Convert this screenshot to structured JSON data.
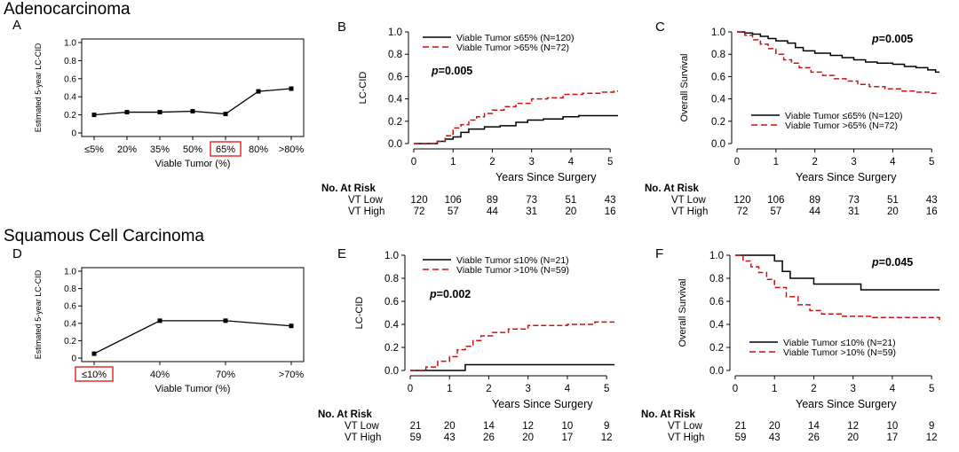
{
  "sections": [
    {
      "title": "Adenocarcinoma"
    },
    {
      "title": "Squamous Cell Carcinoma"
    }
  ],
  "colors": {
    "low": "#000000",
    "high": "#cc1111",
    "highlight": "#e02020"
  },
  "panels": {
    "A": {
      "label": "A"
    },
    "B": {
      "label": "B"
    },
    "C": {
      "label": "C"
    },
    "D": {
      "label": "D"
    },
    "E": {
      "label": "E"
    },
    "F": {
      "label": "F"
    }
  },
  "chart_data": [
    {
      "id": "A",
      "type": "line",
      "ylabel": "Estimated 5-year LC-CID",
      "xlabel": "Viable Tumor (%)",
      "categories": [
        "≤5%",
        "20%",
        "35%",
        "50%",
        "65%",
        "80%",
        ">80%"
      ],
      "values": [
        0.2,
        0.23,
        0.23,
        0.24,
        0.21,
        0.46,
        0.49
      ],
      "highlight_category": "65%",
      "ylim": [
        0,
        1
      ],
      "yticks": [
        "0",
        "0.2",
        "0.4",
        "0.6",
        "0.8",
        "1.0"
      ]
    },
    {
      "id": "B",
      "type": "line",
      "step": true,
      "ylabel": "LC-CID",
      "xlabel": "Years Since Surgery",
      "xlim": [
        0,
        5.2
      ],
      "ylim": [
        0,
        1
      ],
      "xticks": [
        "0",
        "1",
        "2",
        "3",
        "4",
        "5"
      ],
      "yticks": [
        "0.0",
        "0.2",
        "0.4",
        "0.6",
        "0.8",
        "1.0"
      ],
      "pvalue_label": "p",
      "pvalue": "=0.005",
      "legend": [
        "Viable Tumor ≤65% (N=120)",
        "Viable Tumor >65% (N=72)"
      ],
      "series": [
        {
          "name": "Viable Tumor ≤65% (N=120)",
          "style": "solid",
          "x": [
            0,
            0.5,
            0.6,
            0.8,
            1.0,
            1.2,
            1.4,
            1.8,
            2.2,
            2.6,
            2.9,
            3.3,
            3.8,
            4.2,
            5.2
          ],
          "y": [
            0,
            0,
            0.02,
            0.04,
            0.06,
            0.1,
            0.13,
            0.15,
            0.16,
            0.19,
            0.21,
            0.22,
            0.24,
            0.25,
            0.25
          ]
        },
        {
          "name": "Viable Tumor >65% (N=72)",
          "style": "dashed",
          "x": [
            0,
            0.6,
            0.8,
            1.0,
            1.2,
            1.4,
            1.6,
            1.8,
            2.0,
            2.3,
            2.6,
            3.0,
            3.4,
            3.8,
            4.3,
            4.8,
            5.1,
            5.2
          ],
          "y": [
            0,
            0.02,
            0.07,
            0.14,
            0.17,
            0.21,
            0.24,
            0.27,
            0.3,
            0.33,
            0.36,
            0.4,
            0.41,
            0.44,
            0.45,
            0.46,
            0.47,
            0.47
          ]
        }
      ],
      "risk": {
        "title": "No. At Risk",
        "rows": [
          {
            "label": "VT Low",
            "values": [
              "120",
              "106",
              "89",
              "73",
              "51",
              "43"
            ]
          },
          {
            "label": "VT High",
            "values": [
              "72",
              "57",
              "44",
              "31",
              "20",
              "16"
            ]
          }
        ]
      }
    },
    {
      "id": "C",
      "type": "line",
      "step": true,
      "ylabel": "Overall Survival",
      "xlabel": "Years Since Surgery",
      "xlim": [
        0,
        5.2
      ],
      "ylim": [
        0,
        1
      ],
      "xticks": [
        "0",
        "1",
        "2",
        "3",
        "4",
        "5"
      ],
      "yticks": [
        "0.0",
        "0.2",
        "0.4",
        "0.6",
        "0.8",
        "1.0"
      ],
      "pvalue_label": "p",
      "pvalue": "=0.005",
      "legend": [
        "Viable Tumor ≤65% (N=120)",
        "Viable Tumor >65% (N=72)"
      ],
      "series": [
        {
          "name": "Viable Tumor ≤65% (N=120)",
          "style": "solid",
          "x": [
            0,
            0.2,
            0.4,
            0.6,
            0.8,
            1.0,
            1.3,
            1.5,
            1.7,
            2.0,
            2.4,
            2.7,
            3.0,
            3.3,
            3.6,
            4.0,
            4.3,
            4.6,
            4.9,
            5.1,
            5.2
          ],
          "y": [
            1.0,
            0.99,
            0.98,
            0.96,
            0.94,
            0.92,
            0.9,
            0.86,
            0.83,
            0.81,
            0.79,
            0.77,
            0.75,
            0.73,
            0.72,
            0.71,
            0.69,
            0.68,
            0.66,
            0.64,
            0.64
          ]
        },
        {
          "name": "Viable Tumor >65% (N=72)",
          "style": "dashed",
          "x": [
            0,
            0.2,
            0.4,
            0.6,
            0.8,
            1.0,
            1.2,
            1.4,
            1.6,
            1.9,
            2.2,
            2.5,
            2.8,
            3.1,
            3.4,
            3.8,
            4.2,
            4.6,
            5.0,
            5.2
          ],
          "y": [
            1.0,
            0.97,
            0.93,
            0.89,
            0.85,
            0.8,
            0.75,
            0.72,
            0.68,
            0.64,
            0.61,
            0.58,
            0.56,
            0.53,
            0.51,
            0.49,
            0.47,
            0.46,
            0.45,
            0.45
          ]
        }
      ],
      "risk": {
        "title": "No. At Risk",
        "rows": [
          {
            "label": "VT Low",
            "values": [
              "120",
              "106",
              "89",
              "73",
              "51",
              "43"
            ]
          },
          {
            "label": "VT High",
            "values": [
              "72",
              "57",
              "44",
              "31",
              "20",
              "16"
            ]
          }
        ]
      }
    },
    {
      "id": "D",
      "type": "line",
      "ylabel": "Estimated 5-year LC-CID",
      "xlabel": "Viable Tumor (%)",
      "categories": [
        "≤10%",
        "40%",
        "70%",
        ">70%"
      ],
      "values": [
        0.05,
        0.43,
        0.43,
        0.37
      ],
      "highlight_category": "≤10%",
      "ylim": [
        0,
        1
      ],
      "yticks": [
        "0",
        "0.2",
        "0.4",
        "0.6",
        "0.8",
        "1.0"
      ]
    },
    {
      "id": "E",
      "type": "line",
      "step": true,
      "ylabel": "LC-CID",
      "xlabel": "Years Since Surgery",
      "xlim": [
        0,
        5.2
      ],
      "ylim": [
        0,
        1
      ],
      "xticks": [
        "0",
        "1",
        "2",
        "3",
        "4",
        "5"
      ],
      "yticks": [
        "0.0",
        "0.2",
        "0.4",
        "0.6",
        "0.8",
        "1.0"
      ],
      "pvalue_label": "p",
      "pvalue": "=0.002",
      "legend": [
        "Viable Tumor ≤10% (N=21)",
        "Viable Tumor >10% (N=59)"
      ],
      "series": [
        {
          "name": "Viable Tumor ≤10% (N=21)",
          "style": "solid",
          "x": [
            0,
            1.4,
            5.2
          ],
          "y": [
            0,
            0.05,
            0.05
          ]
        },
        {
          "name": "Viable Tumor >10% (N=59)",
          "style": "dashed",
          "x": [
            0,
            0.4,
            0.7,
            1.0,
            1.2,
            1.4,
            1.6,
            1.8,
            2.1,
            2.5,
            3.0,
            4.0,
            4.7,
            5.2
          ],
          "y": [
            0,
            0.03,
            0.08,
            0.12,
            0.18,
            0.21,
            0.26,
            0.3,
            0.33,
            0.36,
            0.39,
            0.4,
            0.42,
            0.42
          ]
        }
      ],
      "risk": {
        "title": "No. At Risk",
        "rows": [
          {
            "label": "VT Low",
            "values": [
              "21",
              "20",
              "14",
              "12",
              "10",
              "9"
            ]
          },
          {
            "label": "VT High",
            "values": [
              "59",
              "43",
              "26",
              "20",
              "17",
              "12"
            ]
          }
        ]
      }
    },
    {
      "id": "F",
      "type": "line",
      "step": true,
      "ylabel": "Overall Survival",
      "xlabel": "Years Since Surgery",
      "xlim": [
        0,
        5.2
      ],
      "ylim": [
        0,
        1
      ],
      "xticks": [
        "0",
        "1",
        "2",
        "3",
        "4",
        "5"
      ],
      "yticks": [
        "0.0",
        "0.2",
        "0.4",
        "0.6",
        "0.8",
        "1.0"
      ],
      "pvalue_label": "p",
      "pvalue": "=0.045",
      "legend": [
        "Viable Tumor ≤10% (N=21)",
        "Viable Tumor >10% (N=59)"
      ],
      "series": [
        {
          "name": "Viable Tumor ≤10% (N=21)",
          "style": "solid",
          "x": [
            0,
            1.0,
            1.2,
            1.4,
            2.0,
            3.2,
            5.2
          ],
          "y": [
            1.0,
            0.95,
            0.86,
            0.8,
            0.75,
            0.7,
            0.7
          ]
        },
        {
          "name": "Viable Tumor >10% (N=59)",
          "style": "dashed",
          "x": [
            0,
            0.2,
            0.4,
            0.6,
            0.8,
            1.0,
            1.3,
            1.6,
            1.9,
            2.2,
            2.7,
            3.5,
            5.2
          ],
          "y": [
            1.0,
            0.95,
            0.9,
            0.85,
            0.79,
            0.72,
            0.64,
            0.57,
            0.52,
            0.49,
            0.47,
            0.46,
            0.43
          ]
        }
      ],
      "risk": {
        "title": "No. At Risk",
        "rows": [
          {
            "label": "VT Low",
            "values": [
              "21",
              "20",
              "14",
              "12",
              "10",
              "9"
            ]
          },
          {
            "label": "VT High",
            "values": [
              "59",
              "43",
              "26",
              "20",
              "17",
              "12"
            ]
          }
        ]
      }
    }
  ]
}
